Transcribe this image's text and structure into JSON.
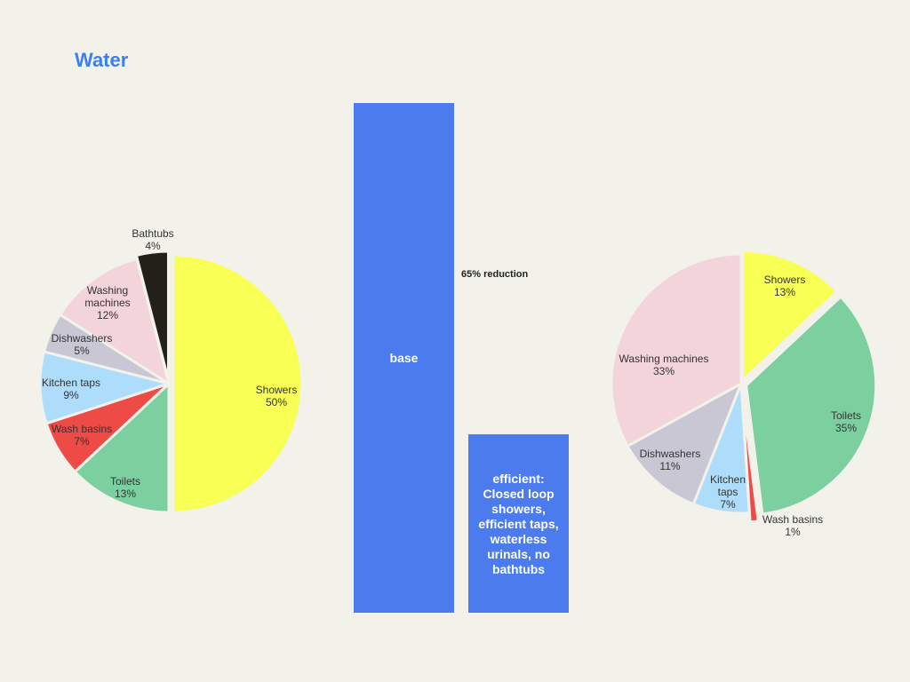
{
  "page": {
    "title": "Water"
  },
  "colors": {
    "background": "#f2f2ea",
    "title": "#3b7ff0",
    "bar": "#4b7bec",
    "separator": "#f2f2ea",
    "Showers": "#f8ff55",
    "Toilets": "#7ccf9f",
    "Wash basins": "#ee4a46",
    "Kitchen taps": "#aeddfb",
    "Dishwashers": "#c9c7d4",
    "Washing machines": "#f2d4da",
    "Bathtubs": "#222019"
  },
  "chart_data": [
    {
      "type": "pie",
      "slices": [
        {
          "label": "Showers",
          "value": 50,
          "value_label": "50%"
        },
        {
          "label": "Toilets",
          "value": 13,
          "value_label": "13%"
        },
        {
          "label": "Wash basins",
          "value": 7,
          "value_label": "7%"
        },
        {
          "label": "Kitchen taps",
          "value": 9,
          "value_label": "9%"
        },
        {
          "label": "Dishwashers",
          "value": 5,
          "value_label": "5%"
        },
        {
          "label": "Washing machines",
          "value": 12,
          "value_label": "12%"
        },
        {
          "label": "Bathtubs",
          "value": 4,
          "value_label": "4%"
        }
      ]
    },
    {
      "type": "bar",
      "categories": [
        "base",
        "efficient: Closed loop showers, efficient taps, waterless urinals, no bathtubs"
      ],
      "values": [
        100,
        35
      ],
      "ylim": [
        0,
        100
      ],
      "annotation": "65% reduction"
    },
    {
      "type": "pie",
      "slices": [
        {
          "label": "Showers",
          "value": 13,
          "value_label": "13%"
        },
        {
          "label": "Toilets",
          "value": 35,
          "value_label": "35%"
        },
        {
          "label": "Wash basins",
          "value": 1,
          "value_label": "1%"
        },
        {
          "label": "Kitchen taps",
          "value": 7,
          "value_label": "7%"
        },
        {
          "label": "Dishwashers",
          "value": 11,
          "value_label": "11%"
        },
        {
          "label": "Washing machines",
          "value": 33,
          "value_label": "33%"
        }
      ]
    }
  ]
}
